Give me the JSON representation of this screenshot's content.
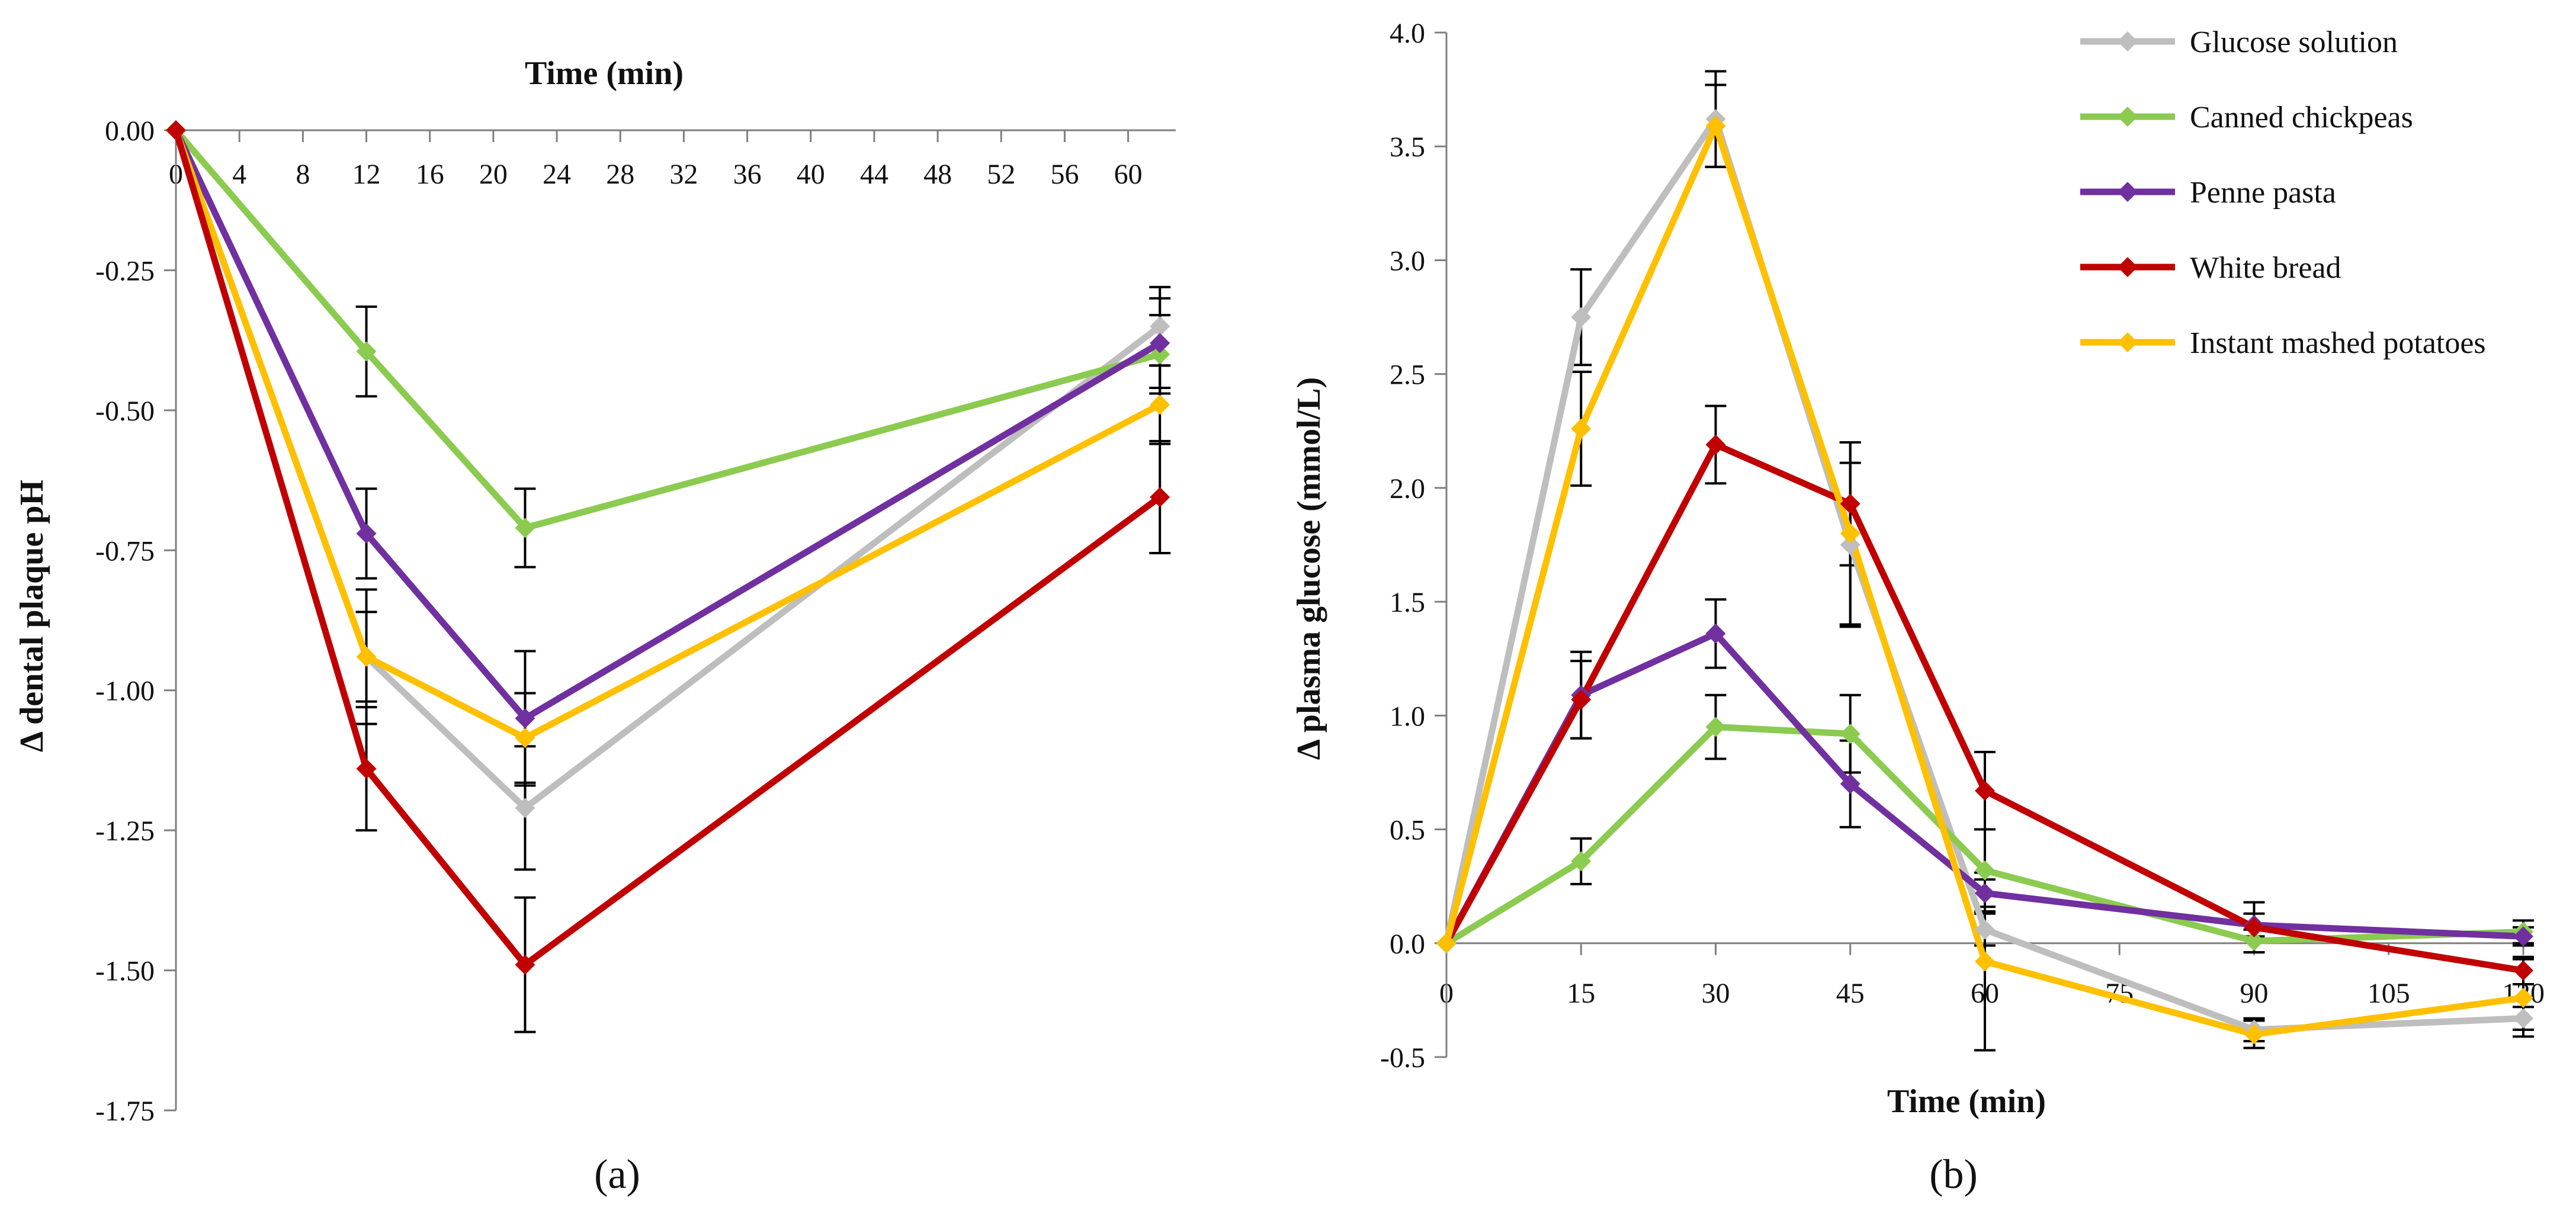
{
  "colors": {
    "glucose": "#BEBEBE",
    "chickpeas": "#8BCB50",
    "pasta": "#7030A0",
    "bread": "#C00000",
    "potatoes": "#FFC000",
    "axis": "#7F7F7F",
    "errorbar": "#000000"
  },
  "chart_data": [
    {
      "id": "a",
      "type": "line",
      "panel_label": "(a)",
      "title": "",
      "xlabel": "Time (min)",
      "ylabel": "Δ dental plaque pH",
      "xaxis_position": "top",
      "xlim": [
        0,
        63
      ],
      "ylim": [
        -1.75,
        0
      ],
      "xticks": [
        0,
        4,
        8,
        12,
        16,
        20,
        24,
        28,
        32,
        36,
        40,
        44,
        48,
        52,
        56,
        60
      ],
      "xtick_labels": [
        "0",
        "4",
        "8",
        "12",
        "16",
        "20",
        "24",
        "28",
        "32",
        "36",
        "40",
        "44",
        "48",
        "52",
        "56",
        "60"
      ],
      "yticks": [
        0,
        -0.25,
        -0.5,
        -0.75,
        -1.0,
        -1.25,
        -1.5,
        -1.75
      ],
      "ytick_labels": [
        "0.00",
        "-0.25",
        "-0.50",
        "-0.75",
        "-1.00",
        "-1.25",
        "-1.50",
        "-1.75"
      ],
      "x": [
        0,
        12,
        22,
        62
      ],
      "series": [
        {
          "name": "Glucose solution",
          "color_key": "glucose",
          "values": [
            0,
            -0.94,
            -1.21,
            -0.35
          ],
          "errors": [
            0,
            0.12,
            0.11,
            0.07
          ]
        },
        {
          "name": "Canned chickpeas",
          "color_key": "chickpeas",
          "values": [
            0,
            -0.395,
            -0.71,
            -0.4
          ],
          "errors": [
            0,
            0.08,
            0.07,
            0.07
          ]
        },
        {
          "name": "Penne pasta",
          "color_key": "pasta",
          "values": [
            0,
            -0.72,
            -1.05,
            -0.38
          ],
          "errors": [
            0,
            0.08,
            0.12,
            0.08
          ]
        },
        {
          "name": "Instant mashed potatoes",
          "color_key": "potatoes",
          "values": [
            0,
            -0.94,
            -1.085,
            -0.49
          ],
          "errors": [
            0,
            0.08,
            0.08,
            0.07
          ]
        },
        {
          "name": "White bread",
          "color_key": "bread",
          "values": [
            0,
            -1.14,
            -1.49,
            -0.655
          ],
          "errors": [
            0,
            0.11,
            0.12,
            0.1
          ]
        }
      ]
    },
    {
      "id": "b",
      "type": "line",
      "panel_label": "(b)",
      "title": "",
      "xlabel": "Time (min)",
      "ylabel": "Δ plasma glucose (mmol/L)",
      "xaxis_position": "zero",
      "xlim": [
        0,
        120
      ],
      "ylim": [
        -0.5,
        4.0
      ],
      "xticks": [
        0,
        15,
        30,
        45,
        60,
        75,
        90,
        105,
        120
      ],
      "xtick_labels": [
        "0",
        "15",
        "30",
        "45",
        "60",
        "75",
        "90",
        "105",
        "120"
      ],
      "yticks": [
        4.0,
        3.5,
        3.0,
        2.5,
        2.0,
        1.5,
        1.0,
        0.5,
        0.0,
        -0.5
      ],
      "ytick_labels": [
        "4.0",
        "3.5",
        "3.0",
        "2.5",
        "2.0",
        "1.5",
        "1.0",
        "0.5",
        "0.0",
        "-0.5"
      ],
      "x": [
        0,
        15,
        30,
        45,
        60,
        90,
        120
      ],
      "series": [
        {
          "name": "Glucose solution",
          "color_key": "glucose",
          "values": [
            0,
            2.75,
            3.62,
            1.75,
            0.06,
            -0.38,
            -0.33
          ],
          "errors": [
            0,
            0.21,
            0.21,
            0.36,
            0.07,
            0.05,
            0.05
          ]
        },
        {
          "name": "Canned chickpeas",
          "color_key": "chickpeas",
          "values": [
            0,
            0.36,
            0.95,
            0.92,
            0.32,
            0.01,
            0.05
          ],
          "errors": [
            0,
            0.1,
            0.14,
            0.17,
            0.18,
            0.05,
            0.05
          ]
        },
        {
          "name": "Penne pasta",
          "color_key": "pasta",
          "values": [
            0,
            1.09,
            1.36,
            0.7,
            0.22,
            0.08,
            0.03
          ],
          "errors": [
            0,
            0.19,
            0.15,
            0.19,
            0.06,
            0.05,
            0.04
          ]
        },
        {
          "name": "White bread",
          "color_key": "bread",
          "values": [
            0,
            1.07,
            2.19,
            1.93,
            0.67,
            0.07,
            -0.12
          ],
          "errors": [
            0,
            0.17,
            0.17,
            0.27,
            0.17,
            0.11,
            0.06
          ]
        },
        {
          "name": "Instant mashed potatoes",
          "color_key": "potatoes",
          "values": [
            0,
            2.26,
            3.59,
            1.8,
            -0.08,
            -0.4,
            -0.24
          ],
          "errors": [
            0,
            0.25,
            0.18,
            0.4,
            0.39,
            0.06,
            0.17
          ]
        }
      ]
    }
  ],
  "legend": [
    {
      "label": "Glucose solution",
      "color_key": "glucose"
    },
    {
      "label": "Canned chickpeas",
      "color_key": "chickpeas"
    },
    {
      "label": "Penne pasta",
      "color_key": "pasta"
    },
    {
      "label": "White bread",
      "color_key": "bread"
    },
    {
      "label": "Instant mashed potatoes",
      "color_key": "potatoes"
    }
  ]
}
